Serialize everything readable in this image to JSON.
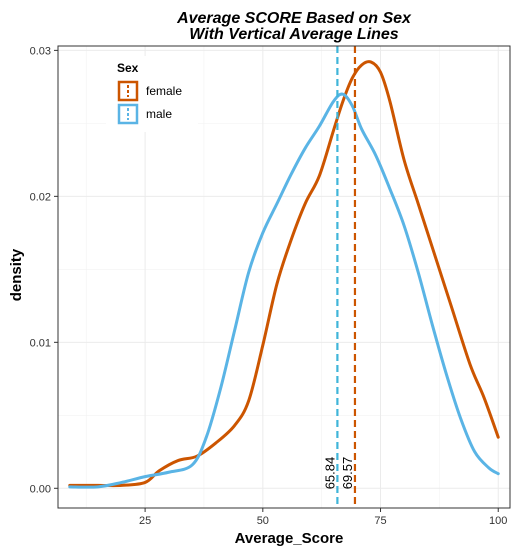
{
  "chart_data": {
    "type": "line",
    "title": "Average SCORE Based on Sex",
    "subtitle": "With Vertical Average Lines",
    "xlabel": "Average_Score",
    "ylabel": "density",
    "xlim": [
      6.5,
      102.5
    ],
    "ylim": [
      -0.00135,
      0.0303
    ],
    "x_ticks": [
      25,
      50,
      75,
      100
    ],
    "y_ticks": [
      0.0,
      0.01,
      0.02,
      0.03
    ],
    "x_tick_labels": [
      "25",
      "50",
      "75",
      "100"
    ],
    "y_tick_labels": [
      "0.00",
      "0.01",
      "0.02",
      "0.03"
    ],
    "grid": true,
    "legend": {
      "title": "Sex",
      "position": "top-left"
    },
    "series": [
      {
        "name": "female",
        "color": "#CC5500",
        "x": [
          9,
          15,
          20,
          25,
          28,
          32,
          36,
          40,
          44,
          47,
          50,
          53,
          56,
          59,
          62,
          65,
          67,
          69,
          71,
          73,
          75,
          77,
          80,
          83,
          86,
          90,
          94,
          97,
          100
        ],
        "y": [
          0.0002,
          0.0002,
          0.0002,
          0.0004,
          0.0012,
          0.0019,
          0.0022,
          0.0031,
          0.0043,
          0.006,
          0.0098,
          0.014,
          0.017,
          0.0195,
          0.0214,
          0.0245,
          0.0265,
          0.0281,
          0.029,
          0.0292,
          0.0285,
          0.0265,
          0.0225,
          0.0195,
          0.0165,
          0.0125,
          0.0085,
          0.0062,
          0.0035
        ]
      },
      {
        "name": "male",
        "color": "#5AB4E5",
        "x": [
          9,
          15,
          20,
          25,
          30,
          35,
          38,
          41,
          44,
          47,
          50,
          53,
          56,
          59,
          62,
          65,
          67,
          69,
          71,
          74,
          77,
          80,
          83,
          86,
          89,
          92,
          95,
          98,
          100
        ],
        "y": [
          0.0001,
          0.0001,
          0.0004,
          0.0008,
          0.0011,
          0.0016,
          0.0035,
          0.0068,
          0.0108,
          0.0148,
          0.0175,
          0.0195,
          0.0215,
          0.0233,
          0.0248,
          0.0265,
          0.027,
          0.0262,
          0.0246,
          0.0228,
          0.0205,
          0.018,
          0.0148,
          0.0112,
          0.0078,
          0.0048,
          0.0025,
          0.0014,
          0.001
        ]
      }
    ],
    "vlines": [
      {
        "series": "male",
        "x": 65.84,
        "label": "65.84",
        "color": "#3FB5D9"
      },
      {
        "series": "female",
        "x": 69.57,
        "label": "69.57",
        "color": "#CC5500"
      }
    ]
  }
}
